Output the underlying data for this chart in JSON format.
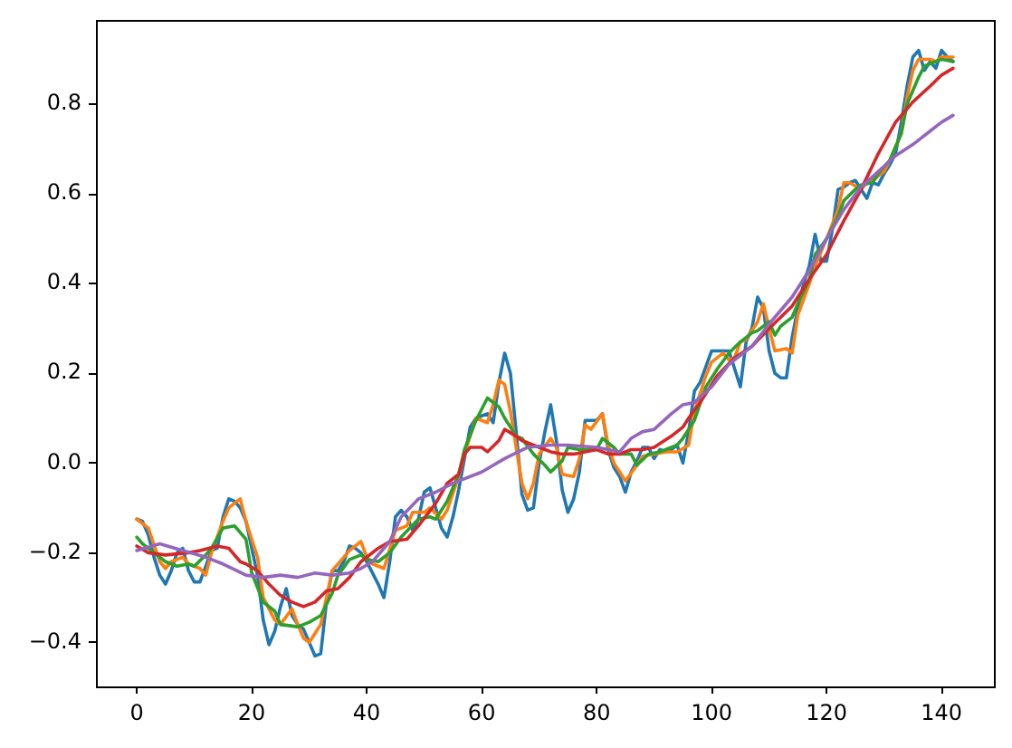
{
  "chart_data": {
    "type": "line",
    "xlim": [
      -7.1,
      149.1
    ],
    "ylim": [
      -0.498,
      0.987
    ],
    "xticks": [
      0,
      20,
      40,
      60,
      80,
      100,
      120,
      140
    ],
    "yticks": [
      {
        "value": -0.4,
        "label": "−0.4"
      },
      {
        "value": -0.2,
        "label": "−0.2"
      },
      {
        "value": 0,
        "label": "0.0"
      },
      0.2,
      0.4,
      0.6,
      0.8
    ],
    "series": [
      {
        "color": "#1f77b4",
        "x": [
          0,
          1,
          2,
          3,
          4,
          5,
          6,
          7,
          8,
          9,
          10,
          11,
          12,
          13,
          14,
          15,
          16,
          17,
          18,
          19,
          20,
          21,
          22,
          23,
          24,
          25,
          26,
          27,
          28,
          29,
          30,
          31,
          32,
          33,
          34,
          35,
          36,
          37,
          38,
          39,
          40,
          41,
          42,
          43,
          44,
          45,
          46,
          47,
          48,
          49,
          50,
          51,
          52,
          53,
          54,
          55,
          56,
          57,
          58,
          59,
          60,
          61,
          62,
          63,
          64,
          65,
          66,
          67,
          68,
          69,
          70,
          71,
          72,
          73,
          74,
          75,
          76,
          77,
          78,
          79,
          80,
          81,
          82,
          83,
          84,
          85,
          86,
          87,
          88,
          89,
          90,
          91,
          92,
          93,
          94,
          95,
          96,
          97,
          98,
          99,
          100,
          101,
          102,
          103,
          104,
          105,
          106,
          107,
          108,
          109,
          110,
          111,
          112,
          113,
          114,
          115,
          116,
          117,
          118,
          119,
          120,
          121,
          122,
          123,
          124,
          125,
          126,
          127,
          128,
          129,
          130,
          131,
          132,
          133,
          134,
          135,
          136,
          137,
          138,
          139,
          140,
          141,
          142
        ],
        "values": [
          -0.125,
          -0.13,
          -0.16,
          -0.21,
          -0.25,
          -0.27,
          -0.24,
          -0.2,
          -0.19,
          -0.24,
          -0.265,
          -0.265,
          -0.23,
          -0.195,
          -0.19,
          -0.12,
          -0.08,
          -0.085,
          -0.1,
          -0.13,
          -0.19,
          -0.25,
          -0.35,
          -0.405,
          -0.375,
          -0.32,
          -0.28,
          -0.34,
          -0.36,
          -0.37,
          -0.4,
          -0.43,
          -0.425,
          -0.31,
          -0.24,
          -0.24,
          -0.22,
          -0.185,
          -0.19,
          -0.2,
          -0.22,
          -0.245,
          -0.27,
          -0.3,
          -0.22,
          -0.12,
          -0.105,
          -0.12,
          -0.15,
          -0.125,
          -0.065,
          -0.055,
          -0.1,
          -0.145,
          -0.165,
          -0.12,
          -0.06,
          0.01,
          0.08,
          0.1,
          0.105,
          0.11,
          0.09,
          0.18,
          0.245,
          0.2,
          0.07,
          -0.07,
          -0.105,
          -0.1,
          0,
          0.07,
          0.13,
          0.05,
          -0.06,
          -0.11,
          -0.08,
          -0.02,
          0.095,
          0.095,
          0.095,
          0.11,
          0.03,
          -0.01,
          -0.03,
          -0.065,
          -0.02,
          0.005,
          0.035,
          0.035,
          0.01,
          0.03,
          0.025,
          0.03,
          0.04,
          0,
          0.07,
          0.16,
          0.18,
          0.215,
          0.25,
          0.25,
          0.25,
          0.25,
          0.21,
          0.17,
          0.27,
          0.3,
          0.37,
          0.345,
          0.25,
          0.2,
          0.19,
          0.19,
          0.28,
          0.345,
          0.4,
          0.44,
          0.51,
          0.45,
          0.45,
          0.52,
          0.61,
          0.615,
          0.625,
          0.63,
          0.61,
          0.59,
          0.625,
          0.62,
          0.645,
          0.665,
          0.69,
          0.76,
          0.84,
          0.905,
          0.92,
          0.875,
          0.895,
          0.88,
          0.92,
          0.905,
          0.895
        ]
      },
      {
        "color": "#ff7f0e",
        "x": [
          0,
          2,
          4,
          5,
          6,
          8,
          9,
          11,
          12,
          13,
          15,
          16,
          18,
          19,
          21,
          22,
          24,
          25,
          27,
          28,
          29,
          30,
          31,
          32,
          33,
          34,
          36,
          37,
          39,
          40,
          41,
          43,
          45,
          47,
          48,
          50,
          51,
          53,
          54,
          56,
          57,
          59,
          61,
          62,
          63,
          64,
          65,
          66,
          67,
          68,
          69,
          70,
          72,
          73,
          74,
          76,
          77,
          78,
          79,
          81,
          82,
          83,
          85,
          87,
          88,
          90,
          92,
          94,
          96,
          97,
          99,
          100,
          102,
          103,
          104,
          105,
          106,
          108,
          109,
          110,
          111,
          113,
          114,
          115,
          117,
          118,
          119,
          120,
          122,
          123,
          124,
          126,
          127,
          128,
          130,
          131,
          133,
          134,
          135,
          136,
          138,
          139,
          140,
          141,
          142
        ],
        "values": [
          -0.125,
          -0.145,
          -0.22,
          -0.235,
          -0.22,
          -0.21,
          -0.225,
          -0.235,
          -0.25,
          -0.2,
          -0.13,
          -0.1,
          -0.08,
          -0.13,
          -0.21,
          -0.3,
          -0.35,
          -0.36,
          -0.325,
          -0.36,
          -0.39,
          -0.4,
          -0.38,
          -0.36,
          -0.3,
          -0.24,
          -0.21,
          -0.195,
          -0.175,
          -0.21,
          -0.225,
          -0.235,
          -0.15,
          -0.14,
          -0.11,
          -0.11,
          -0.1,
          -0.125,
          -0.105,
          -0.03,
          0.02,
          0.1,
          0.09,
          0.13,
          0.185,
          0.175,
          0.115,
          0.035,
          -0.045,
          -0.08,
          -0.045,
          0.02,
          0.055,
          0.035,
          -0.025,
          -0.03,
          0.01,
          0.085,
          0.075,
          0.11,
          0.04,
          0,
          -0.04,
          -0.005,
          0.015,
          0.02,
          0.025,
          0.025,
          0.04,
          0.115,
          0.195,
          0.225,
          0.245,
          0.23,
          0.235,
          0.27,
          0.275,
          0.315,
          0.355,
          0.3,
          0.25,
          0.255,
          0.245,
          0.33,
          0.4,
          0.44,
          0.47,
          0.5,
          0.565,
          0.625,
          0.625,
          0.61,
          0.625,
          0.63,
          0.65,
          0.675,
          0.735,
          0.815,
          0.875,
          0.9,
          0.9,
          0.895,
          0.905,
          0.905,
          0.905
        ]
      },
      {
        "color": "#2ca02c",
        "x": [
          0,
          1,
          3,
          5,
          7,
          9,
          10,
          12,
          13,
          15,
          17,
          19,
          20,
          22,
          24,
          25,
          28,
          30,
          32,
          34,
          35,
          37,
          39,
          40,
          42,
          44,
          46,
          49,
          51,
          52,
          54,
          56,
          57,
          59,
          61,
          63,
          64,
          66,
          67,
          69,
          71,
          72,
          74,
          75,
          77,
          79,
          80,
          81,
          83,
          84,
          86,
          87,
          89,
          91,
          92,
          94,
          95,
          97,
          99,
          101,
          103,
          105,
          107,
          108,
          110,
          111,
          112,
          114,
          115,
          117,
          118,
          120,
          122,
          123,
          125,
          126,
          128,
          129,
          131,
          133,
          134,
          136,
          137,
          139,
          140,
          142
        ],
        "values": [
          -0.165,
          -0.18,
          -0.2,
          -0.22,
          -0.23,
          -0.225,
          -0.23,
          -0.205,
          -0.19,
          -0.145,
          -0.14,
          -0.17,
          -0.245,
          -0.31,
          -0.33,
          -0.36,
          -0.365,
          -0.355,
          -0.34,
          -0.29,
          -0.25,
          -0.215,
          -0.205,
          -0.215,
          -0.22,
          -0.2,
          -0.165,
          -0.125,
          -0.12,
          -0.125,
          -0.085,
          -0.025,
          0.03,
          0.095,
          0.145,
          0.125,
          0.1,
          0.06,
          0.055,
          0.02,
          -0.005,
          -0.02,
          0.005,
          0.035,
          0.03,
          0.03,
          0.03,
          0.055,
          0.035,
          0.02,
          0.02,
          -0.005,
          0.02,
          0.025,
          0.03,
          0.04,
          0.055,
          0.095,
          0.17,
          0.21,
          0.245,
          0.27,
          0.29,
          0.295,
          0.315,
          0.285,
          0.305,
          0.325,
          0.355,
          0.41,
          0.465,
          0.5,
          0.55,
          0.585,
          0.61,
          0.62,
          0.625,
          0.645,
          0.675,
          0.735,
          0.8,
          0.86,
          0.885,
          0.895,
          0.9,
          0.895
        ]
      },
      {
        "color": "#d62728",
        "x": [
          0,
          2,
          5,
          9,
          11,
          14,
          16,
          18,
          19,
          21,
          23,
          25,
          27,
          29,
          31,
          33,
          35,
          37,
          39,
          42,
          44,
          47,
          49,
          52,
          54,
          56,
          57,
          58,
          60,
          61,
          63,
          64,
          66,
          67,
          70,
          72,
          74,
          76,
          78,
          80,
          82,
          84,
          86,
          88,
          90,
          93,
          95,
          96,
          98,
          101,
          104,
          107,
          110,
          114,
          117,
          120,
          123,
          126,
          129,
          132,
          135,
          138,
          140,
          142
        ],
        "values": [
          -0.185,
          -0.2,
          -0.205,
          -0.2,
          -0.195,
          -0.185,
          -0.19,
          -0.22,
          -0.225,
          -0.24,
          -0.27,
          -0.295,
          -0.31,
          -0.32,
          -0.31,
          -0.285,
          -0.28,
          -0.255,
          -0.22,
          -0.19,
          -0.175,
          -0.17,
          -0.14,
          -0.09,
          -0.045,
          -0.025,
          0.02,
          0.035,
          0.035,
          0.025,
          0.05,
          0.075,
          0.06,
          0.05,
          0.035,
          0.025,
          0.02,
          0.02,
          0.025,
          0.03,
          0.02,
          0.02,
          0.03,
          0.03,
          0.035,
          0.06,
          0.08,
          0.1,
          0.135,
          0.195,
          0.235,
          0.26,
          0.3,
          0.35,
          0.41,
          0.465,
          0.54,
          0.61,
          0.69,
          0.76,
          0.805,
          0.84,
          0.865,
          0.88
        ]
      },
      {
        "color": "#9467bd",
        "x": [
          0,
          4,
          8,
          12,
          15,
          19,
          22,
          25,
          28,
          31,
          34,
          37,
          39,
          41,
          44,
          46,
          49,
          52,
          55,
          60,
          64,
          68,
          72,
          75,
          80,
          84,
          86,
          88,
          90,
          93,
          95,
          97,
          100,
          103,
          107,
          110,
          114,
          117,
          120,
          123,
          126,
          129,
          132,
          135,
          138,
          140,
          142
        ],
        "values": [
          -0.195,
          -0.18,
          -0.195,
          -0.21,
          -0.225,
          -0.25,
          -0.255,
          -0.25,
          -0.255,
          -0.245,
          -0.25,
          -0.245,
          -0.235,
          -0.22,
          -0.175,
          -0.12,
          -0.08,
          -0.065,
          -0.045,
          -0.02,
          0.01,
          0.035,
          0.04,
          0.04,
          0.035,
          0.025,
          0.055,
          0.07,
          0.075,
          0.11,
          0.13,
          0.135,
          0.17,
          0.22,
          0.26,
          0.31,
          0.37,
          0.43,
          0.5,
          0.565,
          0.615,
          0.65,
          0.685,
          0.71,
          0.74,
          0.76,
          0.775
        ]
      }
    ]
  }
}
